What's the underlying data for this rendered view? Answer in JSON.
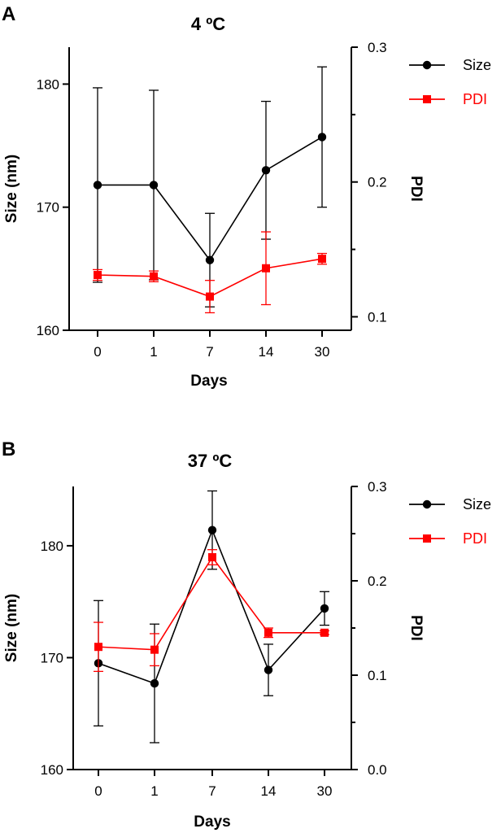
{
  "chart_data": [
    {
      "panel": "A",
      "type": "line",
      "title": "4 ºC",
      "xlabel": "Days",
      "ylabel": "Size (nm)",
      "y2label": "PDI",
      "categories": [
        "0",
        "1",
        "7",
        "14",
        "30"
      ],
      "ylim": [
        160,
        183
      ],
      "yticks": [
        160,
        170,
        180
      ],
      "y2lim": [
        0.09,
        0.3
      ],
      "y2ticks": [
        0.1,
        0.2,
        0.3
      ],
      "y2tick_labels": [
        "0.1",
        "0.2",
        "0.3"
      ],
      "legend_position": "top-right",
      "series": [
        {
          "name": "Size",
          "axis": "left",
          "color": "#000000",
          "marker": "circle",
          "values": [
            171.8,
            171.8,
            165.7,
            173.0,
            175.7
          ],
          "errors": [
            7.9,
            7.7,
            3.8,
            5.6,
            5.7
          ]
        },
        {
          "name": "PDI",
          "axis": "right",
          "color": "#ff0000",
          "marker": "square",
          "values": [
            0.131,
            0.13,
            0.115,
            0.136,
            0.143
          ],
          "errors": [
            0.004,
            0.004,
            0.012,
            0.027,
            0.004
          ]
        }
      ]
    },
    {
      "panel": "B",
      "type": "line",
      "title": "37 ºC",
      "xlabel": "Days",
      "ylabel": "Size (nm)",
      "y2label": "PDI",
      "categories": [
        "0",
        "1",
        "7",
        "14",
        "30"
      ],
      "ylim": [
        160,
        185.3
      ],
      "yticks": [
        160,
        170,
        180
      ],
      "y2lim": [
        0.0,
        0.3
      ],
      "y2ticks": [
        0.0,
        0.1,
        0.2,
        0.3
      ],
      "y2tick_labels": [
        "0.0",
        "0.1",
        "0.2",
        "0.3"
      ],
      "legend_position": "top-right",
      "series": [
        {
          "name": "Size",
          "axis": "left",
          "color": "#000000",
          "marker": "circle",
          "values": [
            169.5,
            167.7,
            181.4,
            168.9,
            174.4
          ],
          "errors": [
            5.6,
            5.3,
            3.5,
            2.3,
            1.5
          ]
        },
        {
          "name": "PDI",
          "axis": "right",
          "color": "#ff0000",
          "marker": "square",
          "values": [
            0.13,
            0.127,
            0.225,
            0.145,
            0.145
          ],
          "errors": [
            0.026,
            0.017,
            0.008,
            0.005,
            0.002
          ]
        }
      ]
    }
  ]
}
